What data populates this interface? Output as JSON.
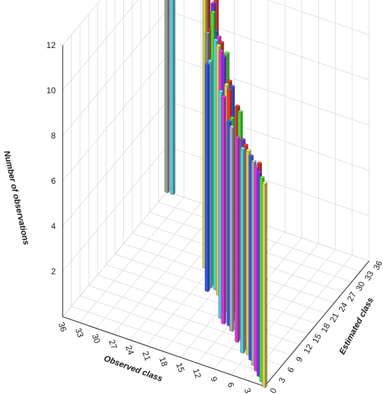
{
  "chart_data": {
    "type": "bar3d",
    "title": "",
    "ylabel": "Number of observations",
    "xlabel": "Observed class",
    "zlabel": "Estimated class",
    "y_ticks": [
      "2",
      "4",
      "6",
      "8",
      "10",
      "12"
    ],
    "x_ticks": [
      "36",
      "33",
      "30",
      "27",
      "24",
      "21",
      "18",
      "15",
      "12",
      "9",
      "6",
      "3",
      "0"
    ],
    "z_ticks": [
      "0",
      "3",
      "6",
      "9",
      "12",
      "15",
      "18",
      "21",
      "24",
      "27",
      "30",
      "33",
      "36"
    ],
    "ylim": [
      0,
      12
    ],
    "observed_lim": [
      0,
      36
    ],
    "estimated_lim": [
      0,
      36
    ],
    "grid": true,
    "bars": [
      {
        "observed": 36,
        "estimated": 36,
        "value": 10,
        "color": "#9a9a9a"
      },
      {
        "observed": 35,
        "estimated": 36,
        "value": 10,
        "color": "#4fc6d4"
      },
      {
        "observed": 22,
        "estimated": 23,
        "value": 12,
        "color": "#cc3322"
      },
      {
        "observed": 22,
        "estimated": 22,
        "value": 12,
        "color": "#d8d050"
      },
      {
        "observed": 20,
        "estimated": 22,
        "value": 12,
        "color": "#ff3333"
      },
      {
        "observed": 20,
        "estimated": 21,
        "value": 12,
        "color": "#7733dd"
      },
      {
        "observed": 19,
        "estimated": 20,
        "value": 11,
        "color": "#3355ee"
      },
      {
        "observed": 19,
        "estimated": 19,
        "value": 12,
        "color": "#44dd33"
      },
      {
        "observed": 18,
        "estimated": 19,
        "value": 11,
        "color": "#dd33dd"
      },
      {
        "observed": 18,
        "estimated": 18,
        "value": 11,
        "color": "#55ccdd"
      },
      {
        "observed": 17,
        "estimated": 18,
        "value": 11,
        "color": "#cc3322"
      },
      {
        "observed": 17,
        "estimated": 17,
        "value": 11,
        "color": "#d8d050"
      },
      {
        "observed": 20,
        "estimated": 20,
        "value": 11,
        "color": "#cc3322"
      },
      {
        "observed": 20,
        "estimated": 19,
        "value": 11,
        "color": "#888888"
      },
      {
        "observed": 19,
        "estimated": 18,
        "value": 10,
        "color": "#55ccdd"
      },
      {
        "observed": 19,
        "estimated": 17,
        "value": 10,
        "color": "#3355ee"
      },
      {
        "observed": 16,
        "estimated": 16,
        "value": 11,
        "color": "#dd33dd"
      },
      {
        "observed": 15,
        "estimated": 16,
        "value": 11,
        "color": "#44dd33"
      },
      {
        "observed": 15,
        "estimated": 15,
        "value": 11,
        "color": "#7733dd"
      },
      {
        "observed": 14,
        "estimated": 15,
        "value": 10,
        "color": "#cc3322"
      },
      {
        "observed": 14,
        "estimated": 14,
        "value": 10,
        "color": "#d8d050"
      },
      {
        "observed": 13,
        "estimated": 14,
        "value": 10,
        "color": "#3355ee"
      },
      {
        "observed": 13,
        "estimated": 13,
        "value": 10,
        "color": "#ff3333"
      },
      {
        "observed": 14,
        "estimated": 12,
        "value": 10,
        "color": "#55ccdd"
      },
      {
        "observed": 13,
        "estimated": 11,
        "value": 10,
        "color": "#dd33dd"
      },
      {
        "observed": 12,
        "estimated": 12,
        "value": 9,
        "color": "#44dd33"
      },
      {
        "observed": 12,
        "estimated": 11,
        "value": 9,
        "color": "#3355ee"
      },
      {
        "observed": 11,
        "estimated": 10,
        "value": 9,
        "color": "#aaaaaa"
      },
      {
        "observed": 10,
        "estimated": 10,
        "value": 10,
        "color": "#cc3322"
      },
      {
        "observed": 9,
        "estimated": 9,
        "value": 10,
        "color": "#44dd33"
      },
      {
        "observed": 9,
        "estimated": 8,
        "value": 9,
        "color": "#dd33dd"
      },
      {
        "observed": 8,
        "estimated": 8,
        "value": 9,
        "color": "#7733dd"
      },
      {
        "observed": 7,
        "estimated": 7,
        "value": 9,
        "color": "#ff3333"
      },
      {
        "observed": 7,
        "estimated": 6,
        "value": 9,
        "color": "#55ccdd"
      },
      {
        "observed": 6,
        "estimated": 6,
        "value": 9,
        "color": "#d8d050"
      },
      {
        "observed": 5,
        "estimated": 5,
        "value": 9,
        "color": "#3355ee"
      },
      {
        "observed": 4,
        "estimated": 4,
        "value": 9,
        "color": "#aaaaaa"
      },
      {
        "observed": 3,
        "estimated": 4,
        "value": 9,
        "color": "#cc3322"
      },
      {
        "observed": 3,
        "estimated": 3,
        "value": 9,
        "color": "#dd33dd"
      },
      {
        "observed": 2,
        "estimated": 2,
        "value": 9,
        "color": "#7733dd"
      },
      {
        "observed": 1,
        "estimated": 1,
        "value": 9,
        "color": "#44dd33"
      },
      {
        "observed": 0,
        "estimated": 0,
        "value": 9,
        "color": "#d8d050"
      }
    ]
  }
}
